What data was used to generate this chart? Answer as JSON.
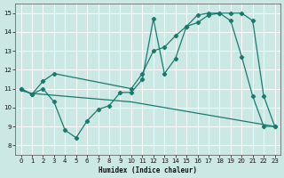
{
  "xlabel": "Humidex (Indice chaleur)",
  "bg_color": "#cce8e4",
  "grid_color": "#ffffff",
  "line_color": "#1a7a6e",
  "xlim": [
    -0.5,
    23.5
  ],
  "ylim": [
    7.5,
    15.5
  ],
  "xticks": [
    0,
    1,
    2,
    3,
    4,
    5,
    6,
    7,
    8,
    9,
    10,
    11,
    12,
    13,
    14,
    15,
    16,
    17,
    18,
    19,
    20,
    21,
    22,
    23
  ],
  "yticks": [
    8,
    9,
    10,
    11,
    12,
    13,
    14,
    15
  ],
  "line_smooth_x": [
    0,
    1,
    2,
    3,
    4,
    5,
    6,
    7,
    8,
    9,
    10,
    11,
    12,
    13,
    14,
    15,
    16,
    17,
    18,
    19,
    20,
    21,
    22,
    23
  ],
  "line_smooth_y": [
    10.9,
    10.75,
    10.7,
    10.65,
    10.6,
    10.55,
    10.5,
    10.45,
    10.4,
    10.35,
    10.3,
    10.2,
    10.1,
    10.0,
    9.9,
    9.8,
    9.7,
    9.6,
    9.5,
    9.4,
    9.3,
    9.2,
    9.1,
    9.0
  ],
  "line_jagged_x": [
    0,
    1,
    2,
    3,
    4,
    5,
    6,
    7,
    8,
    9,
    10,
    11,
    12,
    13,
    14,
    15,
    16,
    17,
    18,
    19,
    20,
    21,
    22,
    23
  ],
  "line_jagged_y": [
    11.0,
    10.7,
    11.0,
    10.3,
    8.8,
    8.4,
    9.3,
    9.9,
    10.1,
    10.8,
    10.8,
    11.5,
    14.7,
    11.8,
    12.6,
    14.3,
    14.9,
    15.0,
    15.0,
    14.6,
    12.7,
    10.6,
    9.0,
    9.0
  ],
  "line_up_x": [
    0,
    1,
    2,
    3,
    10,
    11,
    12,
    13,
    14,
    15,
    16,
    17,
    18,
    19,
    20,
    21,
    22,
    23
  ],
  "line_up_y": [
    11.0,
    10.7,
    11.4,
    11.8,
    11.0,
    11.8,
    13.0,
    13.2,
    13.8,
    14.3,
    14.5,
    14.9,
    15.0,
    15.0,
    15.0,
    14.6,
    10.6,
    9.0
  ]
}
